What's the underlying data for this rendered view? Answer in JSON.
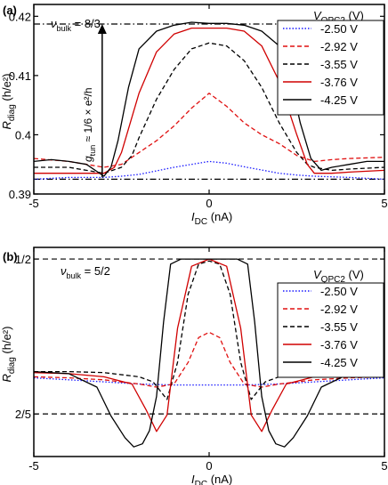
{
  "chart_data": [
    {
      "panel_label": "(a)",
      "type": "line",
      "annotation_nu": "ν",
      "annotation_nu_sub": "bulk",
      "annotation_nu_value": " = 8/3",
      "arrow_label_g": "g",
      "arrow_label_sub": "tun",
      "arrow_label_rest": " ≈ 1/6 × e²/h",
      "xlabel": "I",
      "xlabel_sub": "DC",
      "xlabel_unit": " (nA)",
      "ylabel": "R",
      "ylabel_sub": "diag",
      "ylabel_unit": " (h/e²)",
      "legend_title": "V",
      "legend_title_sub": "QPC2",
      "legend_title_unit": " (V)",
      "xlim": [
        -5,
        5
      ],
      "ylim": [
        0.39,
        0.422
      ],
      "xticks": [
        -5,
        0,
        5
      ],
      "xtick_labels": [
        "-5",
        "0",
        "5"
      ],
      "yticks": [
        0.39,
        0.4,
        0.41,
        0.42
      ],
      "ytick_labels": [
        "0.39",
        "0.4",
        "0.41",
        "0.42"
      ],
      "reference_lines": [
        0.4187,
        0.3925
      ],
      "arrow": {
        "x": -3.05,
        "from": 0.3925,
        "to": 0.4187
      },
      "series": [
        {
          "name": "-2.50 V",
          "color": "#1a1aff",
          "dash": "dotted",
          "x": [
            -5,
            -4,
            -3,
            -2.5,
            -2,
            -1,
            -0.5,
            0,
            0.5,
            1,
            2,
            2.5,
            3,
            4,
            5
          ],
          "y": [
            0.3925,
            0.3928,
            0.3928,
            0.393,
            0.3933,
            0.3945,
            0.395,
            0.3955,
            0.3952,
            0.3946,
            0.3935,
            0.3932,
            0.393,
            0.3928,
            0.3925
          ]
        },
        {
          "name": "-2.92 V",
          "color": "#e01010",
          "dash": "dashed",
          "x": [
            -5,
            -4,
            -3.5,
            -3,
            -2.5,
            -2,
            -1.5,
            -1,
            -0.5,
            0,
            0.5,
            1,
            1.5,
            2,
            2.5,
            3,
            3.5,
            4,
            5
          ],
          "y": [
            0.396,
            0.3955,
            0.395,
            0.3945,
            0.395,
            0.397,
            0.399,
            0.4015,
            0.4045,
            0.407,
            0.4048,
            0.402,
            0.4,
            0.3985,
            0.3965,
            0.3955,
            0.3958,
            0.396,
            0.3962
          ]
        },
        {
          "name": "-3.55 V",
          "color": "#000000",
          "dash": "dashed",
          "x": [
            -5,
            -4,
            -3.5,
            -3,
            -2.5,
            -2.2,
            -2,
            -1.5,
            -1,
            -0.5,
            0,
            0.5,
            1,
            1.5,
            2,
            2.5,
            2.8,
            3,
            3.5,
            4,
            5
          ],
          "y": [
            0.3945,
            0.3945,
            0.394,
            0.3935,
            0.3945,
            0.3965,
            0.3995,
            0.406,
            0.411,
            0.4145,
            0.4155,
            0.415,
            0.4125,
            0.408,
            0.402,
            0.397,
            0.395,
            0.3945,
            0.394,
            0.3942,
            0.3945
          ]
        },
        {
          "name": "-3.76 V",
          "color": "#d00000",
          "dash": "solid",
          "x": [
            -5,
            -4,
            -3.5,
            -3,
            -2.7,
            -2.5,
            -2,
            -1.5,
            -1,
            -0.5,
            0,
            0.5,
            1,
            1.5,
            2,
            2.5,
            2.8,
            3,
            3.5,
            4,
            5
          ],
          "y": [
            0.3935,
            0.3935,
            0.3935,
            0.3935,
            0.3945,
            0.397,
            0.407,
            0.414,
            0.417,
            0.418,
            0.418,
            0.418,
            0.4175,
            0.415,
            0.409,
            0.4,
            0.395,
            0.3935,
            0.3935,
            0.3937,
            0.394
          ]
        },
        {
          "name": "-4.25 V",
          "color": "#000000",
          "dash": "solid",
          "x": [
            -5,
            -4.5,
            -4,
            -3.5,
            -3,
            -2.8,
            -2.6,
            -2.3,
            -2,
            -1.5,
            -1,
            -0.5,
            0,
            0.5,
            1,
            1.5,
            2,
            2.3,
            2.6,
            2.9,
            3.2,
            3.5,
            4,
            4.5,
            5
          ],
          "y": [
            0.3955,
            0.3958,
            0.3955,
            0.395,
            0.393,
            0.3945,
            0.399,
            0.408,
            0.4145,
            0.4175,
            0.4185,
            0.419,
            0.4188,
            0.4188,
            0.4185,
            0.4175,
            0.415,
            0.41,
            0.402,
            0.396,
            0.394,
            0.3945,
            0.395,
            0.3955,
            0.3955
          ]
        }
      ]
    },
    {
      "panel_label": "(b)",
      "type": "line",
      "annotation_nu": "ν",
      "annotation_nu_sub": "bulk",
      "annotation_nu_value": " = 5/2",
      "xlabel": "I",
      "xlabel_sub": "DC",
      "xlabel_unit": " (nA)",
      "ylabel": "R",
      "ylabel_sub": "diag",
      "ylabel_unit": " (h/e²)",
      "legend_title": "V",
      "legend_title_sub": "QPC2",
      "legend_title_unit": " (V)",
      "xlim": [
        -5,
        5
      ],
      "ylim": [
        0.3725,
        0.5075
      ],
      "xticks": [
        -5,
        0,
        5
      ],
      "xtick_labels": [
        "-5",
        "0",
        "5"
      ],
      "yticks": [
        0.4,
        0.5
      ],
      "ytick_labels": [
        "2/5",
        "1/2"
      ],
      "reference_lines": [
        0.5,
        0.4
      ],
      "series": [
        {
          "name": "-2.50 V",
          "color": "#1a1aff",
          "dash": "dotted",
          "x": [
            -5,
            -4,
            -3,
            -2,
            -1,
            0,
            1,
            2,
            3,
            4,
            5
          ],
          "y": [
            0.4233,
            0.422,
            0.4207,
            0.4193,
            0.4187,
            0.4187,
            0.4187,
            0.4193,
            0.4207,
            0.422,
            0.4233
          ]
        },
        {
          "name": "-2.92 V",
          "color": "#e01010",
          "dash": "dashed",
          "x": [
            -5,
            -4,
            -3,
            -2,
            -1.5,
            -1,
            -0.6,
            -0.3,
            0,
            0.3,
            0.6,
            1,
            1.5,
            2,
            3,
            4,
            5
          ],
          "y": [
            0.424,
            0.4233,
            0.422,
            0.4193,
            0.4173,
            0.4193,
            0.4333,
            0.4493,
            0.4527,
            0.4493,
            0.4333,
            0.4193,
            0.4173,
            0.4193,
            0.422,
            0.4233,
            0.424
          ]
        },
        {
          "name": "-3.55 V",
          "color": "#000000",
          "dash": "dashed",
          "x": [
            -5,
            -4,
            -3,
            -2,
            -1.6,
            -1.2,
            -0.9,
            -0.6,
            -0.3,
            0,
            0.3,
            0.6,
            0.9,
            1.2,
            1.6,
            2,
            3,
            4,
            5
          ],
          "y": [
            0.4273,
            0.4273,
            0.4267,
            0.424,
            0.4207,
            0.4093,
            0.4333,
            0.4773,
            0.4967,
            0.4987,
            0.4967,
            0.4773,
            0.4333,
            0.4093,
            0.4207,
            0.424,
            0.4267,
            0.4273,
            0.4273
          ]
        },
        {
          "name": "-3.76 V",
          "color": "#d00000",
          "dash": "solid",
          "x": [
            -5,
            -4,
            -3,
            -2.2,
            -1.8,
            -1.5,
            -1.2,
            -0.9,
            -0.5,
            0,
            0.5,
            0.9,
            1.2,
            1.5,
            1.8,
            2.2,
            3,
            4,
            5
          ],
          "y": [
            0.4267,
            0.426,
            0.424,
            0.4193,
            0.4027,
            0.3887,
            0.3993,
            0.4553,
            0.4953,
            0.5,
            0.4953,
            0.4553,
            0.3993,
            0.3887,
            0.4027,
            0.4193,
            0.424,
            0.426,
            0.4267
          ]
        },
        {
          "name": "-4.25 V",
          "color": "#000000",
          "dash": "solid",
          "x": [
            -5,
            -4,
            -3.2,
            -2.8,
            -2.4,
            -2.15,
            -1.9,
            -1.7,
            -1.5,
            -1.3,
            -1.1,
            -0.8,
            0,
            0.8,
            1.1,
            1.3,
            1.5,
            1.7,
            1.9,
            2.15,
            2.4,
            2.8,
            3.2,
            4,
            5
          ],
          "y": [
            0.4273,
            0.426,
            0.4173,
            0.3987,
            0.3847,
            0.3787,
            0.3807,
            0.3893,
            0.4113,
            0.4593,
            0.4967,
            0.5,
            0.5,
            0.5,
            0.4967,
            0.4593,
            0.4113,
            0.3893,
            0.3807,
            0.3787,
            0.3847,
            0.3987,
            0.4173,
            0.426,
            0.4273
          ]
        }
      ]
    }
  ]
}
